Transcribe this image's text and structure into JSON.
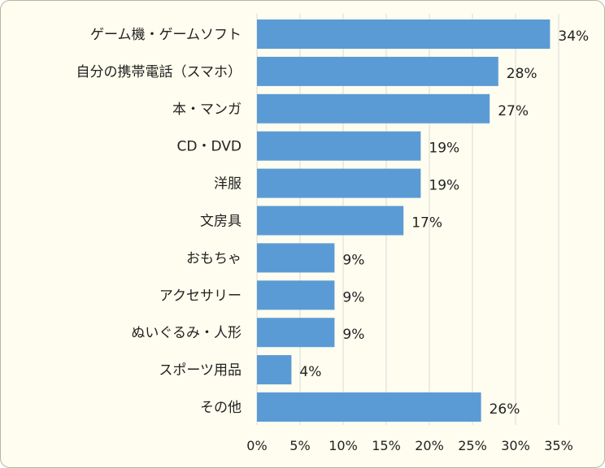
{
  "chart_data": {
    "type": "bar",
    "orientation": "horizontal",
    "categories": [
      "ゲーム機・ゲームソフト",
      "自分の携帯電話（スマホ）",
      "本・マンガ",
      "CD・DVD",
      "洋服",
      "文房具",
      "おもちゃ",
      "アクセサリー",
      "ぬいぐるみ・人形",
      "スポーツ用品",
      "その他"
    ],
    "values": [
      34,
      28,
      27,
      19,
      19,
      17,
      9,
      9,
      9,
      4,
      26
    ],
    "value_labels": [
      "34%",
      "28%",
      "27%",
      "19%",
      "19%",
      "17%",
      "9%",
      "9%",
      "9%",
      "4%",
      "26%"
    ],
    "x_ticks": [
      0,
      5,
      10,
      15,
      20,
      25,
      30,
      35
    ],
    "x_tick_labels": [
      "0%",
      "5%",
      "10%",
      "15%",
      "20%",
      "25%",
      "30%",
      "35%"
    ],
    "xlim": [
      0,
      35
    ],
    "grid": true,
    "legend": "none",
    "title": "",
    "xlabel": "",
    "ylabel": "",
    "colors": {
      "bar": "#5B9BD5",
      "grid": "#D9D9D9",
      "background": "#FEFDEF"
    }
  }
}
